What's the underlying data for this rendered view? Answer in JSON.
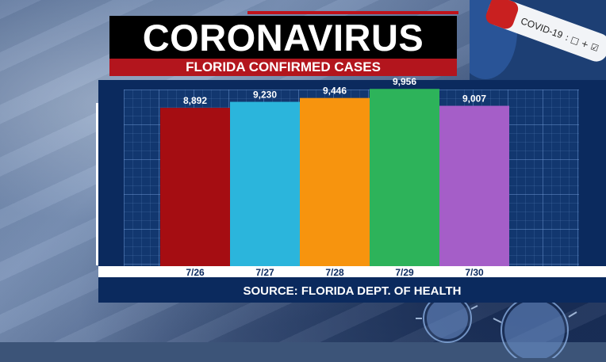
{
  "header": {
    "title": "CORONAVIRUS",
    "subtitle": "FLORIDA CONFIRMED CASES"
  },
  "test_tube": {
    "label": "COVID-19"
  },
  "colors": {
    "title_bg": "#000000",
    "subtitle_bg": "#b3151d",
    "panel_bg": "#0b2a5e",
    "grid_bg": "#12376f"
  },
  "chart_data": {
    "type": "bar",
    "title": "FLORIDA CONFIRMED CASES",
    "categories": [
      "7/26",
      "7/27",
      "7/28",
      "7/29",
      "7/30"
    ],
    "values": [
      8892,
      9230,
      9446,
      9956,
      9007
    ],
    "value_labels": [
      "8,892",
      "9,230",
      "9,446",
      "9,956",
      "9,007"
    ],
    "colors": [
      "#a50d12",
      "#2bb5dc",
      "#f7940e",
      "#2db35a",
      "#a55ec8"
    ],
    "ylim": [
      0,
      10500
    ],
    "grid": true,
    "xlabel": "",
    "ylabel": ""
  },
  "footer": {
    "source": "SOURCE: FLORIDA DEPT. OF HEALTH"
  }
}
